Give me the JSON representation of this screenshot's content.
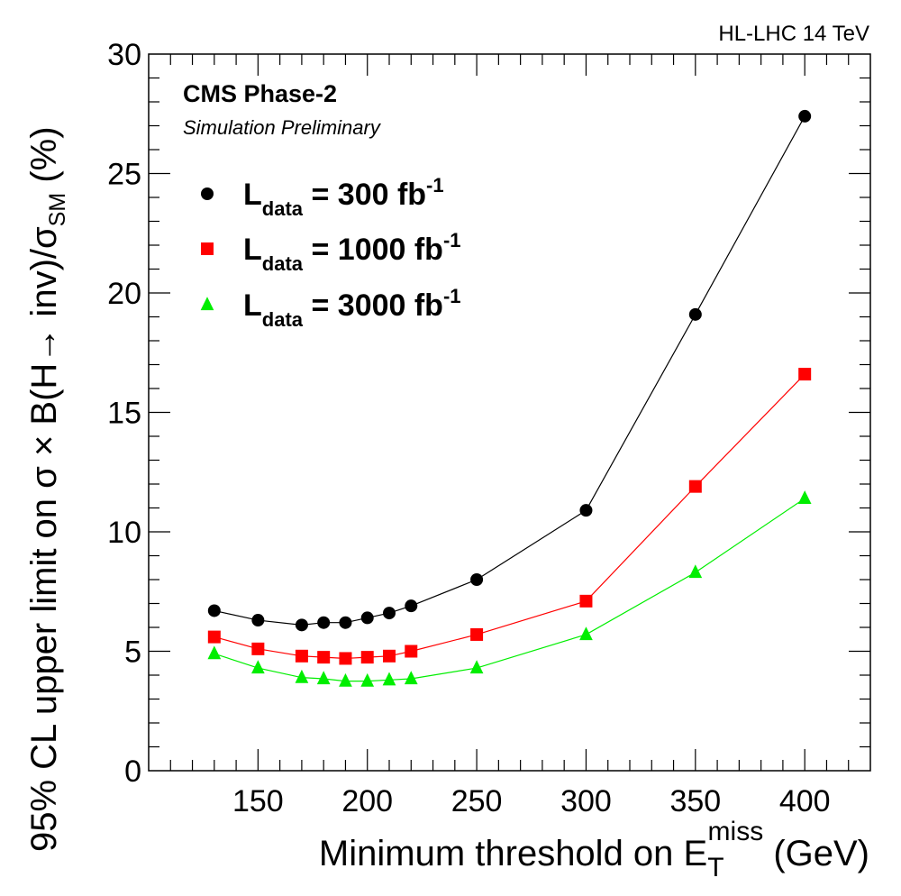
{
  "header": {
    "energy_label": "HL-LHC 14 TeV"
  },
  "experiment": {
    "name": "CMS Phase-2",
    "status": "Simulation Preliminary"
  },
  "chart_data": {
    "type": "line",
    "xlabel": {
      "prefix": "Minimum threshold on E",
      "sub": "T",
      "sup": "miss",
      "suffix": " (GeV)"
    },
    "ylabel": {
      "prefix": "95% CL upper limit on σ × B(H→ inv)/σ",
      "sub": "SM",
      "suffix": " (%)"
    },
    "xlim": [
      100,
      430
    ],
    "ylim": [
      0,
      30
    ],
    "xticks": [
      150,
      200,
      250,
      300,
      350,
      400
    ],
    "yticks": [
      0,
      5,
      10,
      15,
      20,
      25,
      30
    ],
    "x": [
      130,
      150,
      170,
      180,
      190,
      200,
      210,
      220,
      250,
      300,
      350,
      400
    ],
    "series": [
      {
        "legend": {
          "main": "L",
          "sub": "data",
          "value": " = 300 fb",
          "sup": "-1"
        },
        "marker": "circle",
        "color": "#000000",
        "values": [
          6.7,
          6.3,
          6.1,
          6.2,
          6.2,
          6.4,
          6.6,
          6.9,
          8.0,
          10.9,
          19.1,
          27.4
        ]
      },
      {
        "legend": {
          "main": "L",
          "sub": "data",
          "value": " = 1000 fb",
          "sup": "-1"
        },
        "marker": "square",
        "color": "#ff0000",
        "values": [
          5.6,
          5.1,
          4.8,
          4.75,
          4.7,
          4.75,
          4.8,
          5.0,
          5.7,
          7.1,
          11.9,
          16.6
        ]
      },
      {
        "legend": {
          "main": "L",
          "sub": "data",
          "value": " = 3000 fb",
          "sup": "-1"
        },
        "marker": "triangle",
        "color": "#00ee00",
        "values": [
          4.9,
          4.3,
          3.9,
          3.85,
          3.75,
          3.75,
          3.8,
          3.85,
          4.3,
          5.7,
          8.3,
          11.4
        ]
      }
    ]
  }
}
